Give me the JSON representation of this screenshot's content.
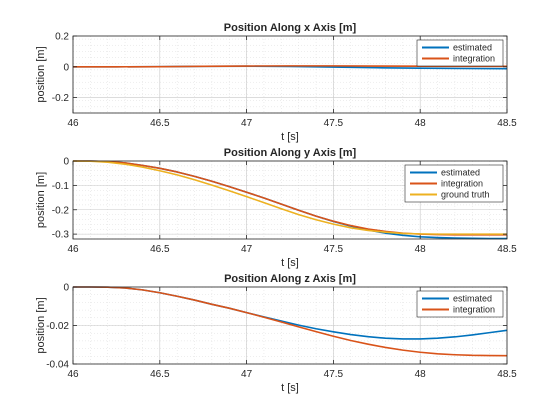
{
  "chart_data": [
    {
      "type": "line",
      "title": "Position Along x Axis [m]",
      "xlabel": "t [s]",
      "ylabel": "position [m]",
      "xlim": [
        46,
        48.5
      ],
      "ylim": [
        -0.3,
        0.2
      ],
      "xticks": [
        46,
        46.5,
        47,
        47.5,
        48,
        48.5
      ],
      "xtick_labels": [
        "46",
        "46.5",
        "47",
        "47.5",
        "48",
        "48.5"
      ],
      "yticks": [
        -0.2,
        0,
        0.2
      ],
      "ytick_labels": [
        "-0.2",
        "0",
        "0.2"
      ],
      "grid": "on (major + minor)",
      "legend": "top-right",
      "series": [
        {
          "name": "estimated",
          "color": "#0072BD",
          "x": [
            46,
            46.25,
            46.5,
            46.75,
            47,
            47.25,
            47.5,
            47.75,
            48,
            48.25,
            48.5
          ],
          "y": [
            0,
            0,
            0.001,
            0.003,
            0.004,
            0.002,
            -0.002,
            -0.006,
            -0.009,
            -0.011,
            -0.012
          ]
        },
        {
          "name": "integration",
          "color": "#D95319",
          "x": [
            46,
            46.25,
            46.5,
            46.75,
            47,
            47.25,
            47.5,
            47.75,
            48,
            48.25,
            48.5
          ],
          "y": [
            0,
            0,
            0.001,
            0.003,
            0.005,
            0.006,
            0.006,
            0.005,
            0.004,
            0.003,
            0.003
          ]
        }
      ]
    },
    {
      "type": "line",
      "title": "Position Along y Axis [m]",
      "xlabel": "t [s]",
      "ylabel": "position [m]",
      "xlim": [
        46,
        48.5
      ],
      "ylim": [
        -0.32,
        0
      ],
      "xticks": [
        46,
        46.5,
        47,
        47.5,
        48,
        48.5
      ],
      "xtick_labels": [
        "46",
        "46.5",
        "47",
        "47.5",
        "48",
        "48.5"
      ],
      "yticks": [
        -0.3,
        -0.2,
        -0.1,
        0
      ],
      "ytick_labels": [
        "-0.3",
        "-0.2",
        "-0.1",
        "0"
      ],
      "grid": "on (major + minor)",
      "legend": "top-right",
      "series": [
        {
          "name": "estimated",
          "color": "#0072BD",
          "x": [
            46,
            46.1,
            46.2,
            46.3,
            46.4,
            46.5,
            46.6,
            46.7,
            46.8,
            46.9,
            47,
            47.1,
            47.2,
            47.3,
            47.4,
            47.5,
            47.6,
            47.7,
            47.8,
            47.9,
            48,
            48.1,
            48.2,
            48.3,
            48.4,
            48.5
          ],
          "y": [
            0,
            0,
            -0.002,
            -0.008,
            -0.018,
            -0.03,
            -0.045,
            -0.063,
            -0.083,
            -0.105,
            -0.128,
            -0.152,
            -0.177,
            -0.202,
            -0.226,
            -0.248,
            -0.267,
            -0.283,
            -0.296,
            -0.305,
            -0.311,
            -0.314,
            -0.316,
            -0.317,
            -0.318,
            -0.318
          ]
        },
        {
          "name": "integration",
          "color": "#D95319",
          "x": [
            46,
            46.1,
            46.2,
            46.3,
            46.4,
            46.5,
            46.6,
            46.7,
            46.8,
            46.9,
            47,
            47.1,
            47.2,
            47.3,
            47.4,
            47.5,
            47.6,
            47.7,
            47.8,
            47.9,
            48,
            48.1,
            48.2,
            48.3,
            48.4,
            48.5
          ],
          "y": [
            0,
            0,
            -0.002,
            -0.008,
            -0.018,
            -0.03,
            -0.045,
            -0.063,
            -0.083,
            -0.105,
            -0.128,
            -0.152,
            -0.177,
            -0.202,
            -0.226,
            -0.247,
            -0.265,
            -0.279,
            -0.289,
            -0.296,
            -0.3,
            -0.302,
            -0.303,
            -0.303,
            -0.303,
            -0.303
          ]
        },
        {
          "name": "ground truth",
          "color": "#EDB120",
          "x": [
            46,
            46.1,
            46.2,
            46.3,
            46.4,
            46.5,
            46.6,
            46.7,
            46.8,
            46.9,
            47,
            47.1,
            47.2,
            47.3,
            47.4,
            47.5,
            47.6,
            47.7,
            47.8,
            47.9,
            48,
            48.1,
            48.2,
            48.3,
            48.4,
            48.5
          ],
          "y": [
            0,
            -0.001,
            -0.005,
            -0.013,
            -0.025,
            -0.04,
            -0.057,
            -0.077,
            -0.099,
            -0.122,
            -0.146,
            -0.171,
            -0.196,
            -0.22,
            -0.241,
            -0.259,
            -0.274,
            -0.285,
            -0.292,
            -0.297,
            -0.299,
            -0.3,
            -0.3,
            -0.3,
            -0.3,
            -0.3
          ]
        }
      ]
    },
    {
      "type": "line",
      "title": "Position Along z Axis [m]",
      "xlabel": "t [s]",
      "ylabel": "position [m]",
      "xlim": [
        46,
        48.5
      ],
      "ylim": [
        -0.04,
        0
      ],
      "xticks": [
        46,
        46.5,
        47,
        47.5,
        48,
        48.5
      ],
      "xtick_labels": [
        "46",
        "46.5",
        "47",
        "47.5",
        "48",
        "48.5"
      ],
      "yticks": [
        -0.04,
        -0.02,
        0
      ],
      "ytick_labels": [
        "-0.04",
        "-0.02",
        "0"
      ],
      "grid": "on (major + minor)",
      "legend": "top-right",
      "series": [
        {
          "name": "estimated",
          "color": "#0072BD",
          "x": [
            46,
            46.1,
            46.2,
            46.3,
            46.4,
            46.5,
            46.6,
            46.7,
            46.8,
            46.9,
            47,
            47.1,
            47.2,
            47.3,
            47.4,
            47.5,
            47.6,
            47.7,
            47.8,
            47.9,
            48,
            48.1,
            48.2,
            48.3,
            48.4,
            48.5
          ],
          "y": [
            0,
            0,
            -0.0001,
            -0.0005,
            -0.0015,
            -0.003,
            -0.0048,
            -0.0068,
            -0.009,
            -0.011,
            -0.0133,
            -0.0155,
            -0.0177,
            -0.0198,
            -0.0217,
            -0.0233,
            -0.0247,
            -0.0258,
            -0.0266,
            -0.027,
            -0.027,
            -0.0266,
            -0.0259,
            -0.0249,
            -0.0237,
            -0.0225
          ]
        },
        {
          "name": "integration",
          "color": "#D95319",
          "x": [
            46,
            46.1,
            46.2,
            46.3,
            46.4,
            46.5,
            46.6,
            46.7,
            46.8,
            46.9,
            47,
            47.1,
            47.2,
            47.3,
            47.4,
            47.5,
            47.6,
            47.7,
            47.8,
            47.9,
            48,
            48.1,
            48.2,
            48.3,
            48.4,
            48.5
          ],
          "y": [
            0,
            0,
            -0.0001,
            -0.0005,
            -0.0015,
            -0.003,
            -0.0048,
            -0.0068,
            -0.009,
            -0.011,
            -0.0133,
            -0.0157,
            -0.0182,
            -0.0207,
            -0.0232,
            -0.0256,
            -0.0278,
            -0.0297,
            -0.0314,
            -0.0328,
            -0.0339,
            -0.0347,
            -0.0352,
            -0.0355,
            -0.0356,
            -0.0357
          ]
        }
      ]
    }
  ]
}
